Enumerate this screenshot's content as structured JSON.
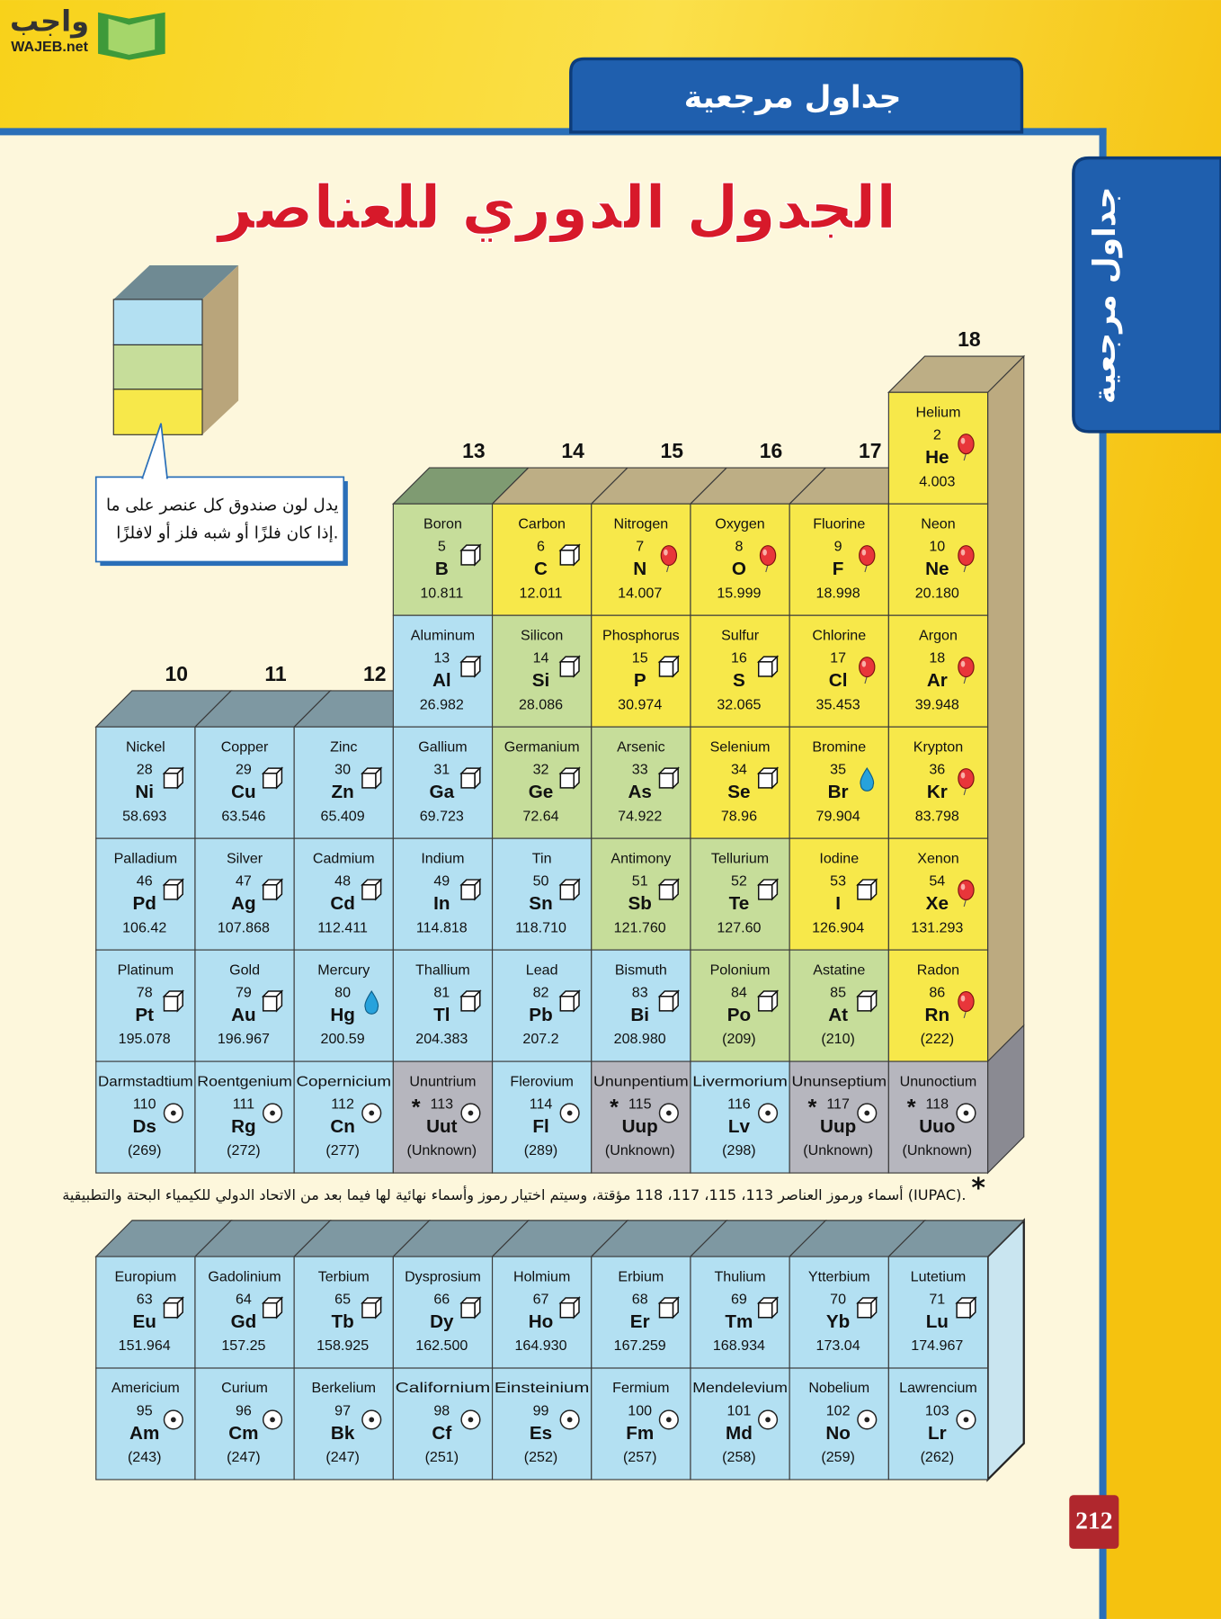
{
  "logo": {
    "arabic": "واجب",
    "latin": "WAJEB.net"
  },
  "header": {
    "tab": "جداول مرجعية",
    "side_tab": "جداول مرجعية",
    "title": "الجدول الدوري للعناصر"
  },
  "legend": {
    "lines": [
      "يدل لون صندوق كل عنصر على ما",
      "إذا كان فلزًا أو شبه فلز أو لافلزًا."
    ]
  },
  "table": {
    "groups": [
      10,
      11,
      12,
      13,
      14,
      15,
      16,
      17,
      18
    ],
    "rows": [
      [
        {
          "name": "Helium",
          "number": 2,
          "symbol": "He",
          "mass": "4.003",
          "class": "nonmetal",
          "state": "gas"
        }
      ],
      [
        {
          "name": "Boron",
          "number": 5,
          "symbol": "B",
          "mass": "10.811",
          "class": "metalloid",
          "state": "solid"
        },
        {
          "name": "Carbon",
          "number": 6,
          "symbol": "C",
          "mass": "12.011",
          "class": "nonmetal",
          "state": "solid"
        },
        {
          "name": "Nitrogen",
          "number": 7,
          "symbol": "N",
          "mass": "14.007",
          "class": "nonmetal",
          "state": "gas"
        },
        {
          "name": "Oxygen",
          "number": 8,
          "symbol": "O",
          "mass": "15.999",
          "class": "nonmetal",
          "state": "gas"
        },
        {
          "name": "Fluorine",
          "number": 9,
          "symbol": "F",
          "mass": "18.998",
          "class": "nonmetal",
          "state": "gas"
        },
        {
          "name": "Neon",
          "number": 10,
          "symbol": "Ne",
          "mass": "20.180",
          "class": "nonmetal",
          "state": "gas"
        }
      ],
      [
        {
          "name": "Aluminum",
          "number": 13,
          "symbol": "Al",
          "mass": "26.982",
          "class": "metal",
          "state": "solid"
        },
        {
          "name": "Silicon",
          "number": 14,
          "symbol": "Si",
          "mass": "28.086",
          "class": "metalloid",
          "state": "solid"
        },
        {
          "name": "Phosphorus",
          "number": 15,
          "symbol": "P",
          "mass": "30.974",
          "class": "nonmetal",
          "state": "solid"
        },
        {
          "name": "Sulfur",
          "number": 16,
          "symbol": "S",
          "mass": "32.065",
          "class": "nonmetal",
          "state": "solid"
        },
        {
          "name": "Chlorine",
          "number": 17,
          "symbol": "Cl",
          "mass": "35.453",
          "class": "nonmetal",
          "state": "gas"
        },
        {
          "name": "Argon",
          "number": 18,
          "symbol": "Ar",
          "mass": "39.948",
          "class": "nonmetal",
          "state": "gas"
        }
      ],
      [
        {
          "name": "Nickel",
          "number": 28,
          "symbol": "Ni",
          "mass": "58.693",
          "class": "metal",
          "state": "solid"
        },
        {
          "name": "Copper",
          "number": 29,
          "symbol": "Cu",
          "mass": "63.546",
          "class": "metal",
          "state": "solid"
        },
        {
          "name": "Zinc",
          "number": 30,
          "symbol": "Zn",
          "mass": "65.409",
          "class": "metal",
          "state": "solid"
        },
        {
          "name": "Gallium",
          "number": 31,
          "symbol": "Ga",
          "mass": "69.723",
          "class": "metal",
          "state": "solid"
        },
        {
          "name": "Germanium",
          "number": 32,
          "symbol": "Ge",
          "mass": "72.64",
          "class": "metalloid",
          "state": "solid"
        },
        {
          "name": "Arsenic",
          "number": 33,
          "symbol": "As",
          "mass": "74.922",
          "class": "metalloid",
          "state": "solid"
        },
        {
          "name": "Selenium",
          "number": 34,
          "symbol": "Se",
          "mass": "78.96",
          "class": "nonmetal",
          "state": "solid"
        },
        {
          "name": "Bromine",
          "number": 35,
          "symbol": "Br",
          "mass": "79.904",
          "class": "nonmetal",
          "state": "liquid"
        },
        {
          "name": "Krypton",
          "number": 36,
          "symbol": "Kr",
          "mass": "83.798",
          "class": "nonmetal",
          "state": "gas"
        }
      ],
      [
        {
          "name": "Palladium",
          "number": 46,
          "symbol": "Pd",
          "mass": "106.42",
          "class": "metal",
          "state": "solid"
        },
        {
          "name": "Silver",
          "number": 47,
          "symbol": "Ag",
          "mass": "107.868",
          "class": "metal",
          "state": "solid"
        },
        {
          "name": "Cadmium",
          "number": 48,
          "symbol": "Cd",
          "mass": "112.411",
          "class": "metal",
          "state": "solid"
        },
        {
          "name": "Indium",
          "number": 49,
          "symbol": "In",
          "mass": "114.818",
          "class": "metal",
          "state": "solid"
        },
        {
          "name": "Tin",
          "number": 50,
          "symbol": "Sn",
          "mass": "118.710",
          "class": "metal",
          "state": "solid"
        },
        {
          "name": "Antimony",
          "number": 51,
          "symbol": "Sb",
          "mass": "121.760",
          "class": "metalloid",
          "state": "solid"
        },
        {
          "name": "Tellurium",
          "number": 52,
          "symbol": "Te",
          "mass": "127.60",
          "class": "metalloid",
          "state": "solid"
        },
        {
          "name": "Iodine",
          "number": 53,
          "symbol": "I",
          "mass": "126.904",
          "class": "nonmetal",
          "state": "solid"
        },
        {
          "name": "Xenon",
          "number": 54,
          "symbol": "Xe",
          "mass": "131.293",
          "class": "nonmetal",
          "state": "gas"
        }
      ],
      [
        {
          "name": "Platinum",
          "number": 78,
          "symbol": "Pt",
          "mass": "195.078",
          "class": "metal",
          "state": "solid"
        },
        {
          "name": "Gold",
          "number": 79,
          "symbol": "Au",
          "mass": "196.967",
          "class": "metal",
          "state": "solid"
        },
        {
          "name": "Mercury",
          "number": 80,
          "symbol": "Hg",
          "mass": "200.59",
          "class": "metal",
          "state": "liquid"
        },
        {
          "name": "Thallium",
          "number": 81,
          "symbol": "Tl",
          "mass": "204.383",
          "class": "metal",
          "state": "solid"
        },
        {
          "name": "Lead",
          "number": 82,
          "symbol": "Pb",
          "mass": "207.2",
          "class": "metal",
          "state": "solid"
        },
        {
          "name": "Bismuth",
          "number": 83,
          "symbol": "Bi",
          "mass": "208.980",
          "class": "metal",
          "state": "solid"
        },
        {
          "name": "Polonium",
          "number": 84,
          "symbol": "Po",
          "mass": "(209)",
          "class": "metalloid",
          "state": "solid"
        },
        {
          "name": "Astatine",
          "number": 85,
          "symbol": "At",
          "mass": "(210)",
          "class": "metalloid",
          "state": "solid"
        },
        {
          "name": "Radon",
          "number": 86,
          "symbol": "Rn",
          "mass": "(222)",
          "class": "nonmetal",
          "state": "gas"
        }
      ],
      [
        {
          "name": "Darmstadtium",
          "number": 110,
          "symbol": "Ds",
          "mass": "(269)",
          "class": "metal",
          "state": "synthetic"
        },
        {
          "name": "Roentgenium",
          "number": 111,
          "symbol": "Rg",
          "mass": "(272)",
          "class": "metal",
          "state": "synthetic"
        },
        {
          "name": "Copernicium",
          "number": 112,
          "symbol": "Cn",
          "mass": "(277)",
          "class": "metal",
          "state": "synthetic"
        },
        {
          "name": "Ununtrium",
          "mark": "*",
          "number": 113,
          "symbol": "Uut",
          "mass": "(Unknown)",
          "class": "unknown",
          "state": "synthetic"
        },
        {
          "name": "Flerovium",
          "number": 114,
          "symbol": "Fl",
          "mass": "(289)",
          "class": "metal",
          "state": "synthetic"
        },
        {
          "name": "Ununpentium",
          "mark": "*",
          "number": 115,
          "symbol": "Uup",
          "mass": "(Unknown)",
          "class": "unknown",
          "state": "synthetic"
        },
        {
          "name": "Livermorium",
          "number": 116,
          "symbol": "Lv",
          "mass": "(298)",
          "class": "metal",
          "state": "synthetic"
        },
        {
          "name": "Ununseptium",
          "mark": "*",
          "number": 117,
          "symbol": "Uup",
          "mass": "(Unknown)",
          "class": "unknown",
          "state": "synthetic"
        },
        {
          "name": "Ununoctium",
          "mark": "*",
          "number": 118,
          "symbol": "Uuo",
          "mass": "(Unknown)",
          "class": "unknown",
          "state": "synthetic"
        }
      ]
    ]
  },
  "footnote": {
    "mark": "*",
    "text": "أسماء ورموز العناصر 113، 115، 117، 118 مؤقتة، وسيتم اختيار رموز وأسماء نهائية لها فيما بعد من الاتحاد الدولي للكيمياء البحتة والتطبيقية (IUPAC)."
  },
  "inner_transition": {
    "rows": [
      [
        {
          "name": "Europium",
          "number": 63,
          "symbol": "Eu",
          "mass": "151.964",
          "class": "metal",
          "state": "solid"
        },
        {
          "name": "Gadolinium",
          "number": 64,
          "symbol": "Gd",
          "mass": "157.25",
          "class": "metal",
          "state": "solid"
        },
        {
          "name": "Terbium",
          "number": 65,
          "symbol": "Tb",
          "mass": "158.925",
          "class": "metal",
          "state": "solid"
        },
        {
          "name": "Dysprosium",
          "number": 66,
          "symbol": "Dy",
          "mass": "162.500",
          "class": "metal",
          "state": "solid"
        },
        {
          "name": "Holmium",
          "number": 67,
          "symbol": "Ho",
          "mass": "164.930",
          "class": "metal",
          "state": "solid"
        },
        {
          "name": "Erbium",
          "number": 68,
          "symbol": "Er",
          "mass": "167.259",
          "class": "metal",
          "state": "solid"
        },
        {
          "name": "Thulium",
          "number": 69,
          "symbol": "Tm",
          "mass": "168.934",
          "class": "metal",
          "state": "solid"
        },
        {
          "name": "Ytterbium",
          "number": 70,
          "symbol": "Yb",
          "mass": "173.04",
          "class": "metal",
          "state": "solid"
        },
        {
          "name": "Lutetium",
          "number": 71,
          "symbol": "Lu",
          "mass": "174.967",
          "class": "metal",
          "state": "solid"
        }
      ],
      [
        {
          "name": "Americium",
          "number": 95,
          "symbol": "Am",
          "mass": "(243)",
          "class": "metal",
          "state": "synthetic"
        },
        {
          "name": "Curium",
          "number": 96,
          "symbol": "Cm",
          "mass": "(247)",
          "class": "metal",
          "state": "synthetic"
        },
        {
          "name": "Berkelium",
          "number": 97,
          "symbol": "Bk",
          "mass": "(247)",
          "class": "metal",
          "state": "synthetic"
        },
        {
          "name": "Californium",
          "number": 98,
          "symbol": "Cf",
          "mass": "(251)",
          "class": "metal",
          "state": "synthetic"
        },
        {
          "name": "Einsteinium",
          "number": 99,
          "symbol": "Es",
          "mass": "(252)",
          "class": "metal",
          "state": "synthetic"
        },
        {
          "name": "Fermium",
          "number": 100,
          "symbol": "Fm",
          "mass": "(257)",
          "class": "metal",
          "state": "synthetic"
        },
        {
          "name": "Mendelevium",
          "number": 101,
          "symbol": "Md",
          "mass": "(258)",
          "class": "metal",
          "state": "synthetic"
        },
        {
          "name": "Nobelium",
          "number": 102,
          "symbol": "No",
          "mass": "(259)",
          "class": "metal",
          "state": "synthetic"
        },
        {
          "name": "Lawrencium",
          "number": 103,
          "symbol": "Lr",
          "mass": "(262)",
          "class": "metal",
          "state": "synthetic"
        }
      ]
    ]
  },
  "page_number": "212"
}
